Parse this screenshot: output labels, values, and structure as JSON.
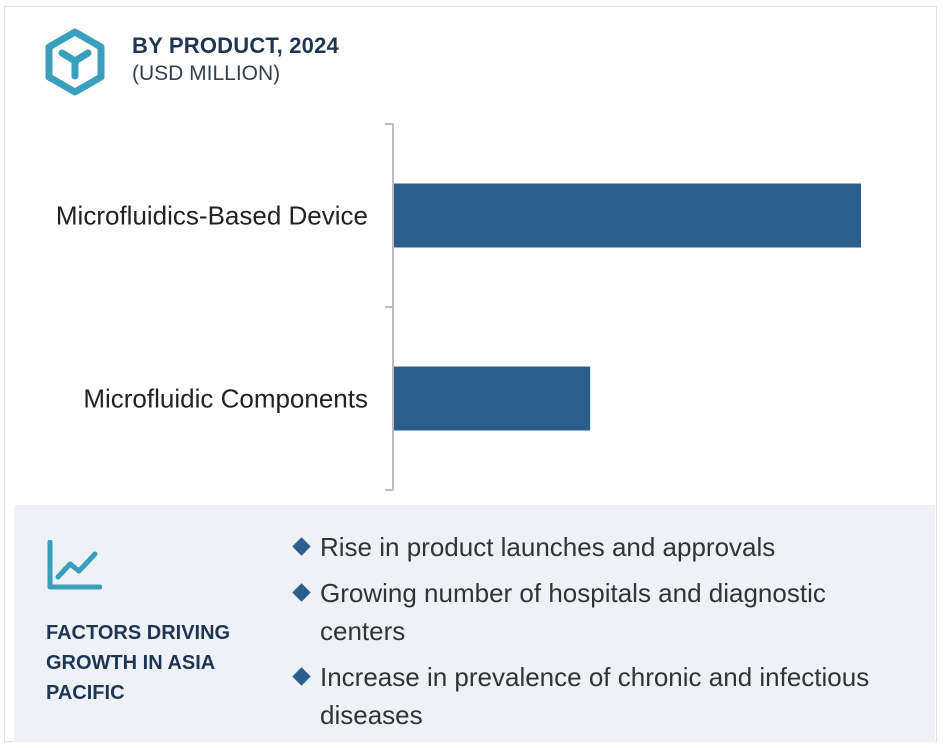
{
  "header": {
    "title": "BY PRODUCT, 2024",
    "subtitle": "(USD MILLION)",
    "icon": "cube-icon"
  },
  "chart_data": {
    "type": "bar",
    "orientation": "horizontal",
    "categories": [
      "Microfluidics-Based Device",
      "Microfluidic Components"
    ],
    "values": [
      100,
      42
    ],
    "xlim": [
      0,
      100
    ],
    "bar_color": "#2c5e8c",
    "axis_color": "#b8bcc2"
  },
  "factors": {
    "icon": "trend-chart-icon",
    "heading": "FACTORS DRIVING GROWTH IN ASIA PACIFIC",
    "items": [
      "Rise in product launches and approvals",
      "Growing number of hospitals and diagnostic centers",
      "Increase in prevalence of chronic and infectious diseases"
    ]
  },
  "colors": {
    "accent": "#3a9fbc",
    "heading": "#1f3556",
    "panel": "#eef1f6"
  }
}
